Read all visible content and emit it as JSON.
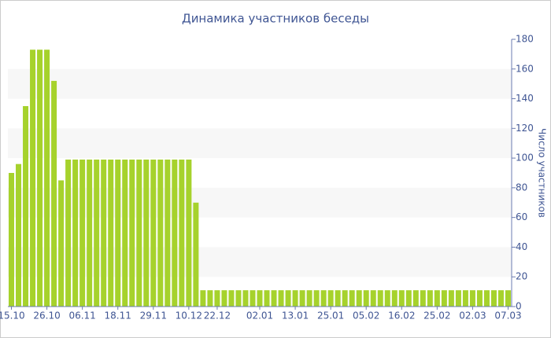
{
  "chart_data": {
    "type": "bar",
    "title": "Динамика участников беседы",
    "y_axis_label": "Число участников",
    "y_axis_side": "right",
    "categories": [
      "15.10",
      null,
      null,
      null,
      null,
      "26.10",
      null,
      null,
      null,
      null,
      "06.11",
      null,
      null,
      null,
      null,
      "18.11",
      null,
      null,
      null,
      null,
      "29.11",
      null,
      null,
      null,
      null,
      "10.12",
      null,
      null,
      null,
      "22.12",
      null,
      null,
      null,
      null,
      null,
      "02.01",
      null,
      null,
      null,
      null,
      "13.01",
      null,
      null,
      null,
      null,
      "25.01",
      null,
      null,
      null,
      null,
      "05.02",
      null,
      null,
      null,
      null,
      "16.02",
      null,
      null,
      null,
      null,
      "25.02",
      null,
      null,
      null,
      null,
      "02.03",
      null,
      null,
      null,
      null,
      "07.03"
    ],
    "values": [
      90,
      96,
      135,
      173,
      173,
      173,
      152,
      85,
      99,
      99,
      99,
      99,
      99,
      99,
      99,
      99,
      99,
      99,
      99,
      99,
      99,
      99,
      99,
      99,
      99,
      99,
      70,
      11,
      11,
      11,
      11,
      11,
      11,
      11,
      11,
      11,
      11,
      11,
      11,
      11,
      11,
      11,
      11,
      11,
      11,
      11,
      11,
      11,
      11,
      11,
      11,
      11,
      11,
      11,
      11,
      11,
      11,
      11,
      11,
      11,
      11,
      11,
      11,
      11,
      11,
      11,
      11,
      11,
      11,
      11,
      11
    ],
    "color": "#a6d22c",
    "ylim": [
      0,
      180
    ],
    "yticks": [
      0,
      20,
      40,
      60,
      80,
      100,
      120,
      140,
      160,
      180
    ],
    "grid_bands": true
  }
}
